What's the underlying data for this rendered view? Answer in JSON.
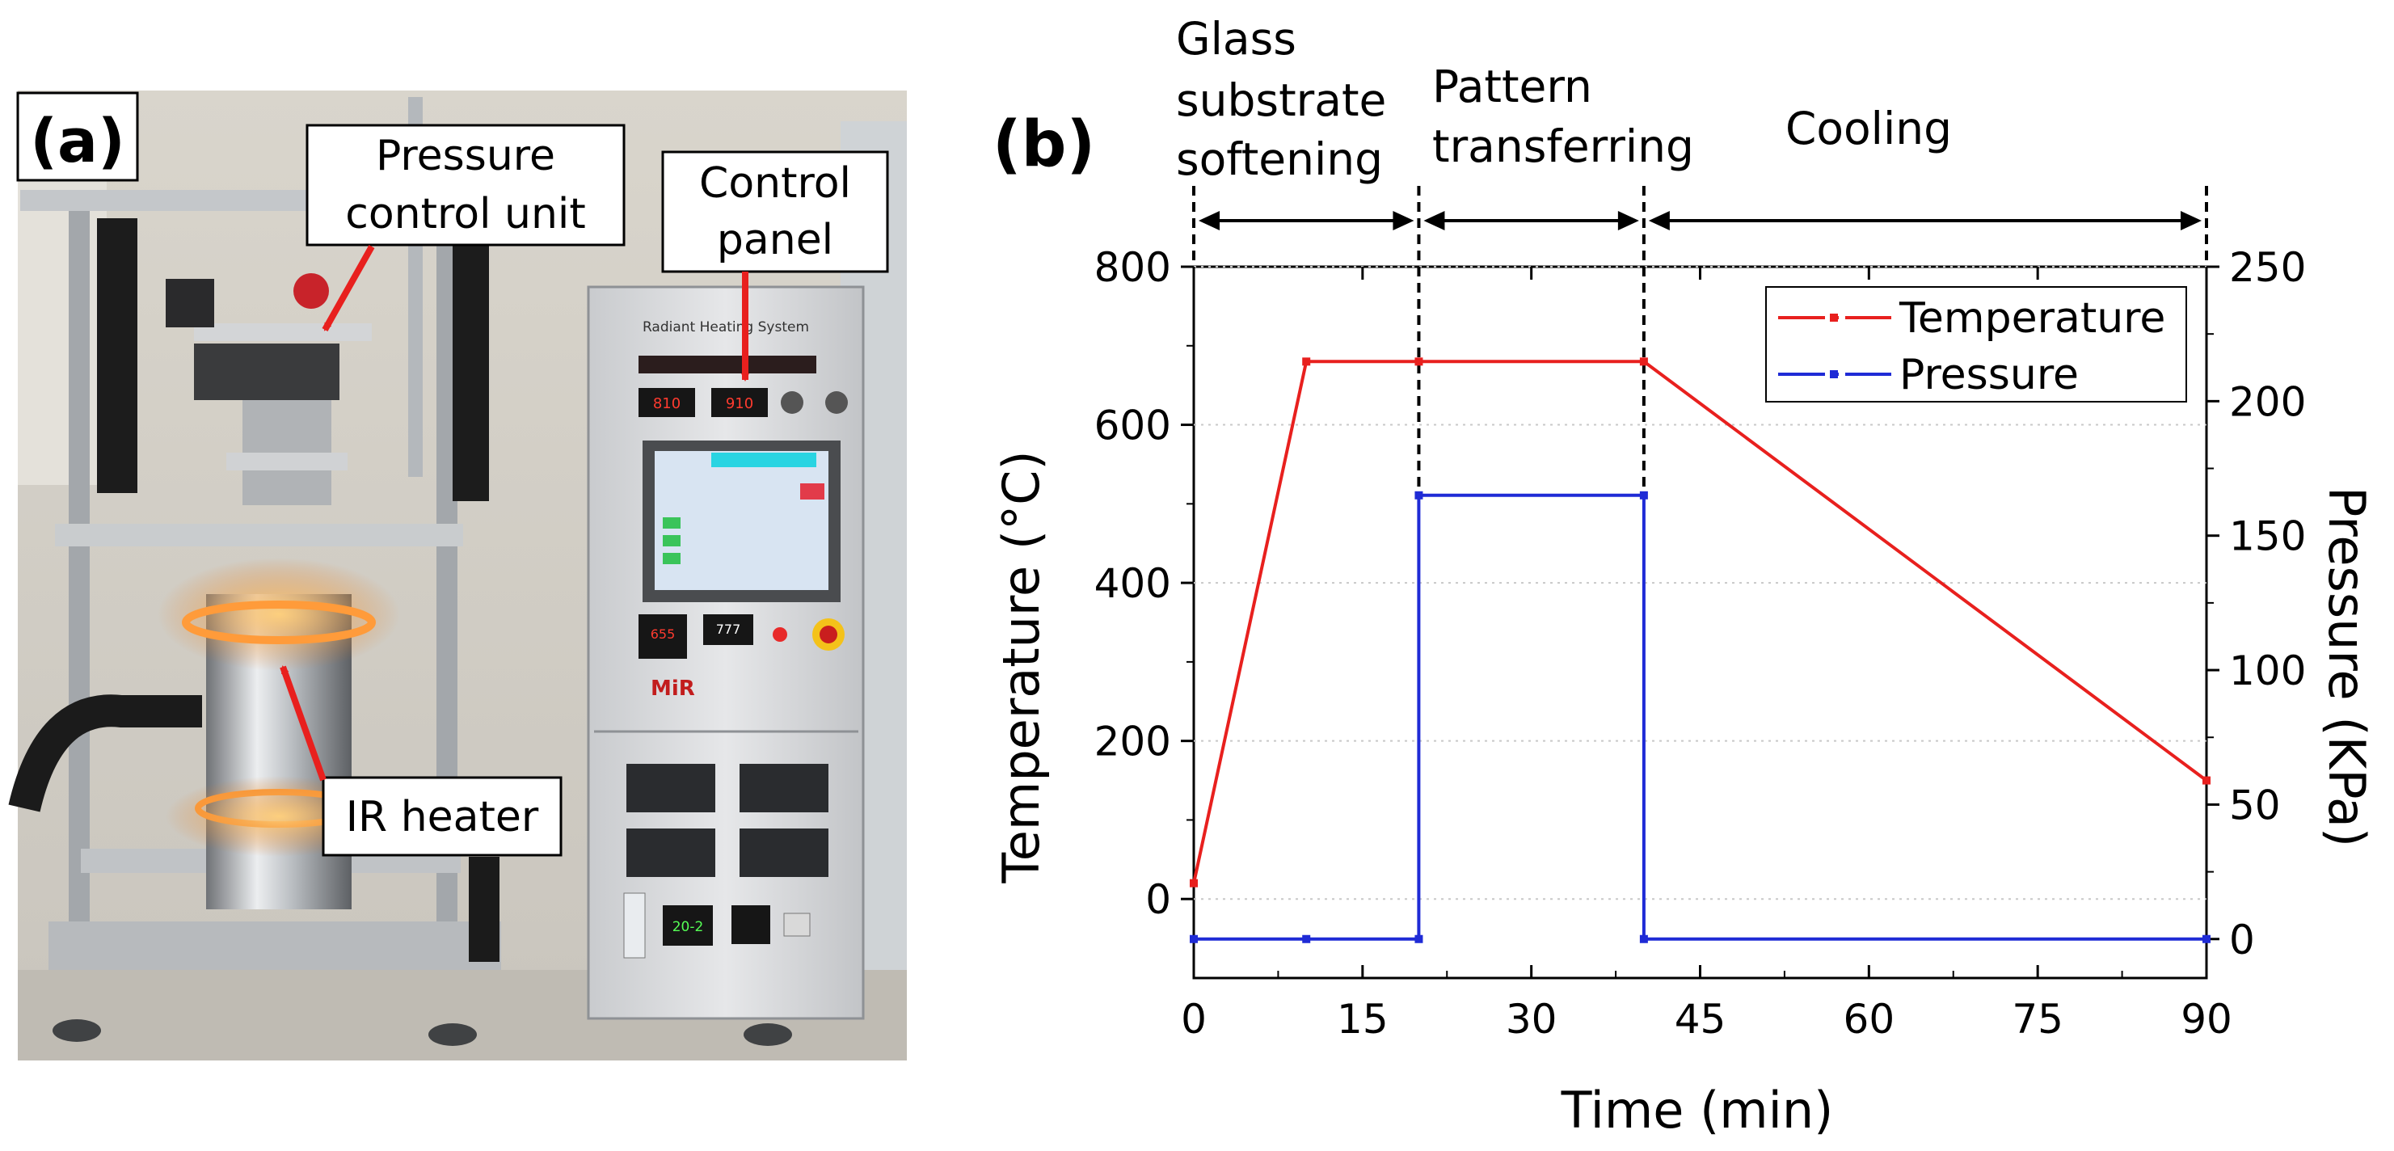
{
  "panel_a": {
    "label": "(a)",
    "photo_description": "radiant heating system apparatus",
    "device_screen": {
      "title": "Radiant Heating System",
      "brand": "MiR",
      "readout_left": "810",
      "readout_right": "910",
      "controller_readout": "655",
      "panel_readout": "777",
      "timer_readout": "20-2"
    },
    "callouts": [
      {
        "text_lines": [
          "Pressure",
          "control unit"
        ]
      },
      {
        "text_lines": [
          "Control",
          "panel"
        ]
      },
      {
        "text_lines": [
          "IR heater"
        ]
      }
    ],
    "colors": {
      "arrow": "#e8201e",
      "callout_border": "#000000"
    }
  },
  "panel_b": {
    "label": "(b)",
    "stages": [
      {
        "name_lines": [
          "Glass",
          "substrate",
          "softening"
        ],
        "start": 0,
        "end": 20
      },
      {
        "name_lines": [
          "Pattern",
          "transferring"
        ],
        "start": 20,
        "end": 40
      },
      {
        "name_lines": [
          "Cooling"
        ],
        "start": 40,
        "end": 90
      }
    ]
  },
  "chart_data": {
    "type": "line",
    "title": "",
    "xlabel": "Time (min)",
    "ylabel": "Temperature (°C)",
    "y2label": "Pressure (KPa)",
    "xlim": [
      0,
      90
    ],
    "ylim": [
      -100,
      800
    ],
    "y2lim": [
      -14.5,
      250
    ],
    "xticks": [
      0,
      15,
      30,
      45,
      60,
      75,
      90
    ],
    "yticks": [
      0,
      200,
      400,
      600,
      800
    ],
    "y2ticks": [
      0,
      50,
      100,
      150,
      200,
      250
    ],
    "grid": "horizontal dotted",
    "legend_position": "top-right",
    "series": [
      {
        "name": "Temperature",
        "axis": "left",
        "color": "#e8201e",
        "x": [
          0,
          10,
          20,
          40,
          90
        ],
        "y": [
          20,
          680,
          680,
          680,
          150
        ]
      },
      {
        "name": "Pressure",
        "axis": "right",
        "color": "#1f2bd6",
        "x": [
          0,
          10,
          20,
          20,
          40,
          40,
          90
        ],
        "y": [
          0,
          0,
          0,
          165,
          165,
          0,
          0
        ]
      }
    ]
  }
}
